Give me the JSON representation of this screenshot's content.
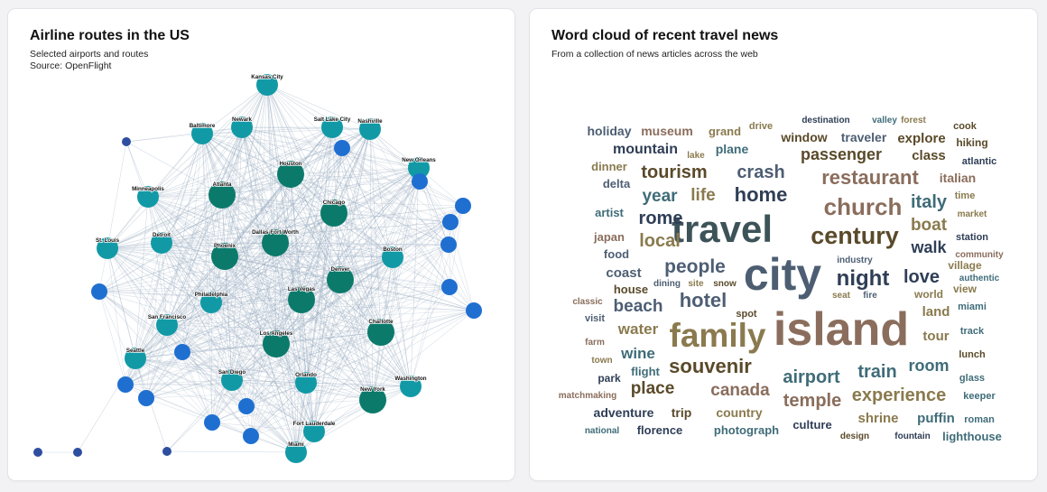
{
  "colors": {
    "edge": "#8ea3bb",
    "node_large": "#0b7a6b",
    "node_medium": "#119aa6",
    "node_unlabeled": "#1f6fd1",
    "node_small": "#2e4ea0"
  },
  "network": {
    "title": "Airline routes in the US",
    "subtitle_lines": [
      "Selected airports and routes",
      "Source: OpenFlight"
    ]
  },
  "cloud": {
    "title": "Word cloud of recent travel news",
    "subtitle_lines": [
      "From a collection of news articles across the web"
    ]
  },
  "chart_data": [
    {
      "type": "network",
      "title": "Airline routes in the US",
      "subtitle": "Selected airports and routes",
      "source": "Source: OpenFlight",
      "nodes": [
        {
          "id": "kansas_city",
          "label": "Kansas City",
          "size": "medium"
        },
        {
          "id": "baltimore",
          "label": "Baltimore",
          "size": "medium"
        },
        {
          "id": "newark",
          "label": "Newark",
          "size": "medium"
        },
        {
          "id": "salt_lake_city",
          "label": "Salt Lake City",
          "size": "medium"
        },
        {
          "id": "nashville",
          "label": "Nashville",
          "size": "medium"
        },
        {
          "id": "new_orleans",
          "label": "New Orleans",
          "size": "medium"
        },
        {
          "id": "minneapolis",
          "label": "Minneapolis",
          "size": "medium"
        },
        {
          "id": "atlanta",
          "label": "Atlanta",
          "size": "large"
        },
        {
          "id": "houston",
          "label": "Houston",
          "size": "large"
        },
        {
          "id": "chicago",
          "label": "Chicago",
          "size": "large"
        },
        {
          "id": "st_louis",
          "label": "St. Louis",
          "size": "medium"
        },
        {
          "id": "detroit",
          "label": "Detroit",
          "size": "medium"
        },
        {
          "id": "dallas",
          "label": "Dallas-Fort Worth",
          "size": "large"
        },
        {
          "id": "phoenix",
          "label": "Phoenix",
          "size": "large"
        },
        {
          "id": "boston",
          "label": "Boston",
          "size": "medium"
        },
        {
          "id": "denver",
          "label": "Denver",
          "size": "large"
        },
        {
          "id": "philadelphia",
          "label": "Philadelphia",
          "size": "medium"
        },
        {
          "id": "las_vegas",
          "label": "Las Vegas",
          "size": "large"
        },
        {
          "id": "san_francisco",
          "label": "San Francisco",
          "size": "medium"
        },
        {
          "id": "charlotte",
          "label": "Charlotte",
          "size": "large"
        },
        {
          "id": "los_angeles",
          "label": "Los Angeles",
          "size": "large"
        },
        {
          "id": "seattle",
          "label": "Seattle",
          "size": "medium"
        },
        {
          "id": "san_diego",
          "label": "San Diego",
          "size": "medium"
        },
        {
          "id": "orlando",
          "label": "Orlando",
          "size": "medium"
        },
        {
          "id": "washington",
          "label": "Washington",
          "size": "medium"
        },
        {
          "id": "new_york",
          "label": "New York",
          "size": "large"
        },
        {
          "id": "fort_lauderdale",
          "label": "Fort Lauderdale",
          "size": "medium"
        },
        {
          "id": "miami",
          "label": "Miami",
          "size": "medium"
        },
        {
          "id": "u1",
          "label": "",
          "size": "small"
        },
        {
          "id": "u2",
          "label": "",
          "size": "unlabeled"
        },
        {
          "id": "u3",
          "label": "",
          "size": "unlabeled"
        },
        {
          "id": "u4",
          "label": "",
          "size": "unlabeled"
        },
        {
          "id": "u5",
          "label": "",
          "size": "unlabeled"
        },
        {
          "id": "u6",
          "label": "",
          "size": "unlabeled"
        },
        {
          "id": "u7",
          "label": "",
          "size": "unlabeled"
        },
        {
          "id": "u8",
          "label": "",
          "size": "unlabeled"
        },
        {
          "id": "u9",
          "label": "",
          "size": "unlabeled"
        },
        {
          "id": "u10",
          "label": "",
          "size": "unlabeled"
        },
        {
          "id": "u11",
          "label": "",
          "size": "unlabeled"
        },
        {
          "id": "u12",
          "label": "",
          "size": "unlabeled"
        },
        {
          "id": "u13",
          "label": "",
          "size": "unlabeled"
        },
        {
          "id": "u14",
          "label": "",
          "size": "unlabeled"
        },
        {
          "id": "u15",
          "label": "",
          "size": "unlabeled"
        },
        {
          "id": "u16",
          "label": "",
          "size": "small"
        },
        {
          "id": "u17",
          "label": "",
          "size": "small"
        },
        {
          "id": "u18",
          "label": "",
          "size": "small"
        }
      ],
      "extra_edges": [
        [
          "u16",
          "u17"
        ],
        [
          "u17",
          "seattle"
        ],
        [
          "u18",
          "seattle"
        ],
        [
          "u18",
          "san_diego"
        ],
        [
          "u18",
          "miami"
        ],
        [
          "u18",
          "los_angeles"
        ]
      ]
    },
    {
      "type": "wordcloud",
      "title": "Word cloud of recent travel news",
      "subtitle": "From a collection of news articles across the web",
      "words": [
        {
          "text": "island",
          "weight": 52,
          "color": "#8a6d5c"
        },
        {
          "text": "city",
          "weight": 50,
          "color": "#4d5e73"
        },
        {
          "text": "travel",
          "weight": 42,
          "color": "#3c5358"
        },
        {
          "text": "family",
          "weight": 37,
          "color": "#8a7a4e"
        },
        {
          "text": "century",
          "weight": 27,
          "color": "#5a4a2a"
        },
        {
          "text": "church",
          "weight": 26,
          "color": "#8a6d5c"
        },
        {
          "text": "night",
          "weight": 24,
          "color": "#2f3e56"
        },
        {
          "text": "souvenir",
          "weight": 22,
          "color": "#5a4a2a"
        },
        {
          "text": "hotel",
          "weight": 22,
          "color": "#4d5e73"
        },
        {
          "text": "restaurant",
          "weight": 22,
          "color": "#8a6d5c"
        },
        {
          "text": "home",
          "weight": 22,
          "color": "#2f3e56"
        },
        {
          "text": "people",
          "weight": 21,
          "color": "#4d5e73"
        },
        {
          "text": "experience",
          "weight": 20,
          "color": "#8a7a4e"
        },
        {
          "text": "airport",
          "weight": 20,
          "color": "#3f6c78"
        },
        {
          "text": "tourism",
          "weight": 20,
          "color": "#5a4a2a"
        },
        {
          "text": "crash",
          "weight": 20,
          "color": "#4d5e73"
        },
        {
          "text": "train",
          "weight": 20,
          "color": "#3f6c78"
        },
        {
          "text": "local",
          "weight": 20,
          "color": "#8a7a4e"
        },
        {
          "text": "rome",
          "weight": 20,
          "color": "#2f3e56"
        },
        {
          "text": "italy",
          "weight": 20,
          "color": "#3f6c78"
        },
        {
          "text": "love",
          "weight": 20,
          "color": "#2f3e56"
        },
        {
          "text": "temple",
          "weight": 20,
          "color": "#8a6d5c"
        },
        {
          "text": "canada",
          "weight": 19,
          "color": "#8a6d5c"
        },
        {
          "text": "boat",
          "weight": 19,
          "color": "#8a7a4e"
        },
        {
          "text": "place",
          "weight": 19,
          "color": "#5a4a2a"
        },
        {
          "text": "beach",
          "weight": 19,
          "color": "#4d5e73"
        },
        {
          "text": "year",
          "weight": 19,
          "color": "#3f6c78"
        },
        {
          "text": "life",
          "weight": 19,
          "color": "#8a7a4e"
        },
        {
          "text": "passenger",
          "weight": 18,
          "color": "#5a4a2a"
        },
        {
          "text": "room",
          "weight": 18,
          "color": "#3f6c78"
        },
        {
          "text": "walk",
          "weight": 18,
          "color": "#2f3e56"
        },
        {
          "text": "water",
          "weight": 17,
          "color": "#8a7a4e"
        },
        {
          "text": "wine",
          "weight": 17,
          "color": "#3f6c78"
        },
        {
          "text": "mountain",
          "weight": 16,
          "color": "#2f3e56"
        },
        {
          "text": "shrine",
          "weight": 15,
          "color": "#8a7a4e"
        },
        {
          "text": "puffin",
          "weight": 15,
          "color": "#3f6c78"
        },
        {
          "text": "coast",
          "weight": 15,
          "color": "#4d5e73"
        },
        {
          "text": "explore",
          "weight": 15,
          "color": "#5a4a2a"
        },
        {
          "text": "class",
          "weight": 15,
          "color": "#5a4a2a"
        },
        {
          "text": "land",
          "weight": 15,
          "color": "#8a7a4e"
        },
        {
          "text": "tour",
          "weight": 15,
          "color": "#8a7a4e"
        },
        {
          "text": "adventure",
          "weight": 14,
          "color": "#2f3e56"
        },
        {
          "text": "country",
          "weight": 14,
          "color": "#8a7a4e"
        },
        {
          "text": "trip",
          "weight": 14,
          "color": "#5a4a2a"
        },
        {
          "text": "window",
          "weight": 14,
          "color": "#5a4a2a"
        },
        {
          "text": "traveler",
          "weight": 14,
          "color": "#4d5e73"
        },
        {
          "text": "plane",
          "weight": 14,
          "color": "#3f6c78"
        },
        {
          "text": "italian",
          "weight": 14,
          "color": "#8a6d5c"
        },
        {
          "text": "holiday",
          "weight": 14,
          "color": "#4d5e73"
        },
        {
          "text": "museum",
          "weight": 14,
          "color": "#8a6d5c"
        },
        {
          "text": "photograph",
          "weight": 13,
          "color": "#3f6c78"
        },
        {
          "text": "culture",
          "weight": 13,
          "color": "#2f3e56"
        },
        {
          "text": "lighthouse",
          "weight": 13,
          "color": "#3f6c78"
        },
        {
          "text": "florence",
          "weight": 13,
          "color": "#2f3e56"
        },
        {
          "text": "flight",
          "weight": 13,
          "color": "#3f6c78"
        },
        {
          "text": "grand",
          "weight": 13,
          "color": "#8a7a4e"
        },
        {
          "text": "food",
          "weight": 13,
          "color": "#4d5e73"
        },
        {
          "text": "house",
          "weight": 13,
          "color": "#5a4a2a"
        },
        {
          "text": "dinner",
          "weight": 13,
          "color": "#8a7a4e"
        },
        {
          "text": "delta",
          "weight": 13,
          "color": "#4d5e73"
        },
        {
          "text": "artist",
          "weight": 13,
          "color": "#3f6c78"
        },
        {
          "text": "japan",
          "weight": 13,
          "color": "#8a6d5c"
        },
        {
          "text": "park",
          "weight": 12,
          "color": "#2f3e56"
        },
        {
          "text": "hiking",
          "weight": 12,
          "color": "#5a4a2a"
        },
        {
          "text": "village",
          "weight": 12,
          "color": "#8a7a4e"
        },
        {
          "text": "world",
          "weight": 12,
          "color": "#8a7a4e"
        },
        {
          "text": "view",
          "weight": 12,
          "color": "#8a7a4e"
        },
        {
          "text": "cook",
          "weight": 11,
          "color": "#5a4a2a"
        },
        {
          "text": "time",
          "weight": 11,
          "color": "#8a7a4e"
        },
        {
          "text": "station",
          "weight": 11,
          "color": "#2f3e56"
        },
        {
          "text": "atlantic",
          "weight": 11,
          "color": "#2f3e56"
        },
        {
          "text": "miami",
          "weight": 11,
          "color": "#3f6c78"
        },
        {
          "text": "track",
          "weight": 11,
          "color": "#3f6c78"
        },
        {
          "text": "lunch",
          "weight": 11,
          "color": "#5a4a2a"
        },
        {
          "text": "glass",
          "weight": 11,
          "color": "#3f6c78"
        },
        {
          "text": "keeper",
          "weight": 11,
          "color": "#3f6c78"
        },
        {
          "text": "roman",
          "weight": 11,
          "color": "#3f6c78"
        },
        {
          "text": "spot",
          "weight": 11,
          "color": "#5a4a2a"
        },
        {
          "text": "visit",
          "weight": 11,
          "color": "#4d5e73"
        },
        {
          "text": "drive",
          "weight": 11,
          "color": "#8a7a4e"
        },
        {
          "text": "destination",
          "weight": 10,
          "color": "#2f3e56"
        },
        {
          "text": "valley",
          "weight": 10,
          "color": "#3f6c78"
        },
        {
          "text": "forest",
          "weight": 10,
          "color": "#8a7a4e"
        },
        {
          "text": "lake",
          "weight": 10,
          "color": "#8a7a4e"
        },
        {
          "text": "market",
          "weight": 10,
          "color": "#8a7a4e"
        },
        {
          "text": "community",
          "weight": 10,
          "color": "#8a6d5c"
        },
        {
          "text": "authentic",
          "weight": 10,
          "color": "#3f6c78"
        },
        {
          "text": "industry",
          "weight": 10,
          "color": "#4d5e73"
        },
        {
          "text": "dining",
          "weight": 10,
          "color": "#4d5e73"
        },
        {
          "text": "site",
          "weight": 10,
          "color": "#8a7a4e"
        },
        {
          "text": "snow",
          "weight": 10,
          "color": "#5a4a2a"
        },
        {
          "text": "seat",
          "weight": 10,
          "color": "#8a7a4e"
        },
        {
          "text": "fire",
          "weight": 10,
          "color": "#4d5e73"
        },
        {
          "text": "classic",
          "weight": 10,
          "color": "#8a6d5c"
        },
        {
          "text": "farm",
          "weight": 10,
          "color": "#8a6d5c"
        },
        {
          "text": "town",
          "weight": 10,
          "color": "#8a7a4e"
        },
        {
          "text": "matchmaking",
          "weight": 10,
          "color": "#8a6d5c"
        },
        {
          "text": "national",
          "weight": 10,
          "color": "#3f6c78"
        },
        {
          "text": "design",
          "weight": 10,
          "color": "#5a4a2a"
        },
        {
          "text": "fountain",
          "weight": 10,
          "color": "#2f3e56"
        }
      ]
    }
  ]
}
